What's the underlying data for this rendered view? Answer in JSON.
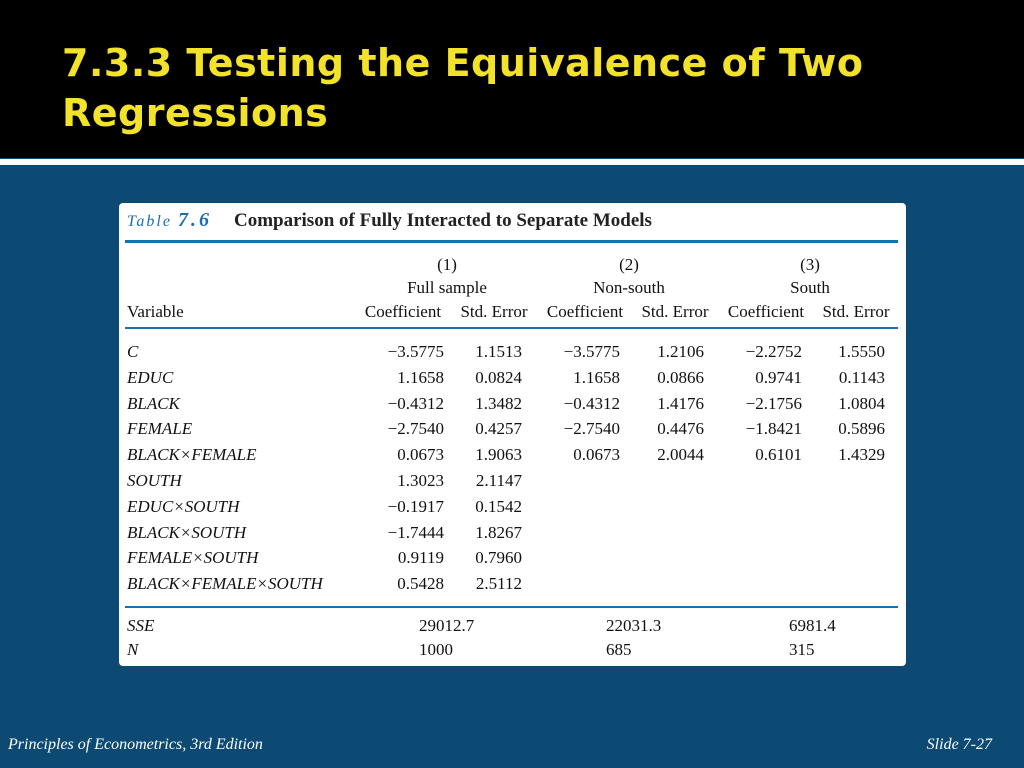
{
  "slide": {
    "title": "7.3.3 Testing the Equivalence of Two Regressions",
    "footer_left": "Principles of Econometrics, 3rd Edition",
    "footer_right": "Slide 7-27"
  },
  "table": {
    "label": "Table",
    "number": "7.6",
    "caption": "Comparison of Fully Interacted to Separate Models",
    "models": [
      {
        "num": "(1)",
        "name": "Full sample"
      },
      {
        "num": "(2)",
        "name": "Non-south"
      },
      {
        "num": "(3)",
        "name": "South"
      }
    ],
    "variable_header": "Variable",
    "coef_header": "Coefficient",
    "se_header": "Std. Error",
    "rows": [
      {
        "var": "C",
        "v": [
          "−3.5775",
          "1.1513",
          "−3.5775",
          "1.2106",
          "−2.2752",
          "1.5550"
        ]
      },
      {
        "var": "EDUC",
        "v": [
          "1.1658",
          "0.0824",
          "1.1658",
          "0.0866",
          "0.9741",
          "0.1143"
        ]
      },
      {
        "var": "BLACK",
        "v": [
          "−0.4312",
          "1.3482",
          "−0.4312",
          "1.4176",
          "−2.1756",
          "1.0804"
        ]
      },
      {
        "var": "FEMALE",
        "v": [
          "−2.7540",
          "0.4257",
          "−2.7540",
          "0.4476",
          "−1.8421",
          "0.5896"
        ]
      },
      {
        "var": "BLACK×FEMALE",
        "v": [
          "0.0673",
          "1.9063",
          "0.0673",
          "2.0044",
          "0.6101",
          "1.4329"
        ]
      },
      {
        "var": "SOUTH",
        "v": [
          "1.3023",
          "2.1147",
          "",
          "",
          "",
          ""
        ]
      },
      {
        "var": "EDUC×SOUTH",
        "v": [
          "−0.1917",
          "0.1542",
          "",
          "",
          "",
          ""
        ]
      },
      {
        "var": "BLACK×SOUTH",
        "v": [
          "−1.7444",
          "1.8267",
          "",
          "",
          "",
          ""
        ]
      },
      {
        "var": "FEMALE×SOUTH",
        "v": [
          "0.9119",
          "0.7960",
          "",
          "",
          "",
          ""
        ]
      },
      {
        "var": "BLACK×FEMALE×SOUTH",
        "v": [
          "0.5428",
          "2.5112",
          "",
          "",
          "",
          ""
        ]
      }
    ],
    "stats": [
      {
        "label": "SSE",
        "v": [
          "29012.7",
          "22031.3",
          "6981.4"
        ]
      },
      {
        "label": "N",
        "v": [
          "1000",
          "685",
          "315"
        ]
      }
    ]
  },
  "colors": {
    "background": "#0d4a73",
    "title_bar": "#000000",
    "title_text": "#f3e22a",
    "table_accent": "#1a6fb0"
  }
}
